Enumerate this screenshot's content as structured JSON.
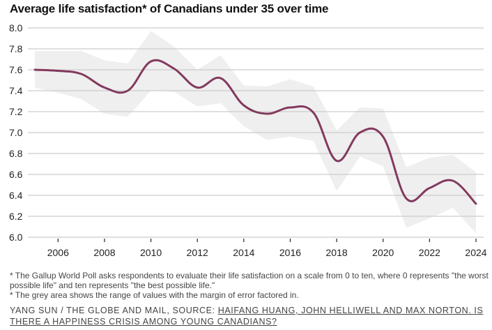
{
  "chart_data": {
    "type": "line",
    "title": "Average life satisfaction* of Canadians under 35 over time",
    "xlabel": "",
    "ylabel": "",
    "x": [
      2005,
      2006,
      2007,
      2008,
      2009,
      2010,
      2011,
      2012,
      2013,
      2014,
      2015,
      2016,
      2017,
      2018,
      2019,
      2020,
      2021,
      2022,
      2023,
      2024
    ],
    "series": [
      {
        "name": "Average life satisfaction",
        "color": "#833a5e",
        "values": [
          7.6,
          7.59,
          7.56,
          7.43,
          7.4,
          7.68,
          7.61,
          7.43,
          7.52,
          7.26,
          7.18,
          7.24,
          7.19,
          6.73,
          7.0,
          6.96,
          6.37,
          6.47,
          6.54,
          6.32
        ]
      },
      {
        "name": "Margin of error range (upper)",
        "color": "#efefef",
        "values": [
          7.78,
          7.78,
          7.78,
          7.69,
          7.66,
          7.97,
          7.82,
          7.6,
          7.74,
          7.45,
          7.44,
          7.51,
          7.44,
          7.02,
          7.24,
          7.23,
          6.67,
          6.76,
          6.79,
          6.62
        ]
      },
      {
        "name": "Margin of error range (lower)",
        "color": "#efefef",
        "values": [
          7.43,
          7.38,
          7.32,
          7.18,
          7.15,
          7.4,
          7.39,
          7.25,
          7.28,
          7.06,
          6.93,
          6.96,
          6.92,
          6.44,
          6.77,
          6.68,
          6.09,
          6.18,
          6.28,
          6.04
        ]
      }
    ],
    "yticks": [
      "8.0",
      "7.8",
      "7.6",
      "7.4",
      "7.2",
      "7.0",
      "6.8",
      "6.6",
      "6.4",
      "6.2",
      "6.0"
    ],
    "ytick_values": [
      8.0,
      7.8,
      7.6,
      7.4,
      7.2,
      7.0,
      6.8,
      6.6,
      6.4,
      6.2,
      6.0
    ],
    "xticks": [
      "2006",
      "2008",
      "2010",
      "2012",
      "2014",
      "2016",
      "2018",
      "2020",
      "2022",
      "2024"
    ],
    "xtick_values": [
      2006,
      2008,
      2010,
      2012,
      2014,
      2016,
      2018,
      2020,
      2022,
      2024
    ],
    "ylim": [
      6.0,
      8.0
    ],
    "xlim": [
      2004.7,
      2024.3
    ],
    "grid": "horizontal",
    "legend": "none"
  },
  "notes": [
    "* The Gallup World Poll asks respondents to evaluate their life satisfaction on a scale from 0 to ten, where 0 represents \"the worst possible life\" and ten represents \"the best possible life.\"",
    "* The grey area shows the range of values with the margin of error factored in."
  ],
  "credit": {
    "prefix": "YANG SUN / THE GLOBE AND MAIL, SOURCE: ",
    "link_text": "HAIFANG HUANG, JOHN HELLIWELL AND MAX NORTON. IS THERE A HAPPINESS CRISIS AMONG YOUNG CANADIANS?"
  }
}
